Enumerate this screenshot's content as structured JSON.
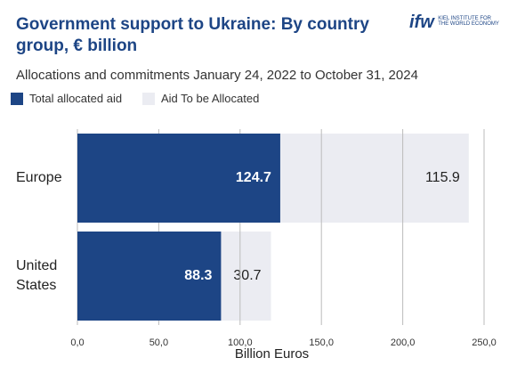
{
  "chart_data": {
    "type": "stacked-barh",
    "title": "Government support to Ukraine: By country group, € billion",
    "subtitle": "Allocations and commitments January 24, 2022 to October 31, 2024",
    "categories": [
      "Europe",
      "United States"
    ],
    "series": [
      {
        "name": "Total allocated aid",
        "color": "#1d4585",
        "values": [
          124.7,
          88.3
        ]
      },
      {
        "name": "Aid To be Allocated",
        "color": "#ebecf2",
        "values": [
          115.9,
          30.7
        ]
      }
    ],
    "xlabel": "Billion Euros",
    "xlim": [
      0,
      250
    ],
    "xticks": [
      {
        "value": 0,
        "label": "0,0"
      },
      {
        "value": 50,
        "label": "50,0"
      },
      {
        "value": 100,
        "label": "100,0"
      },
      {
        "value": 150,
        "label": "150,0"
      },
      {
        "value": 200,
        "label": "200,0"
      },
      {
        "value": 250,
        "label": "250,0"
      }
    ],
    "grid": true
  },
  "logo": {
    "mark": "ifw",
    "name": "KIEL INSTITUTE FOR THE WORLD ECONOMY"
  }
}
